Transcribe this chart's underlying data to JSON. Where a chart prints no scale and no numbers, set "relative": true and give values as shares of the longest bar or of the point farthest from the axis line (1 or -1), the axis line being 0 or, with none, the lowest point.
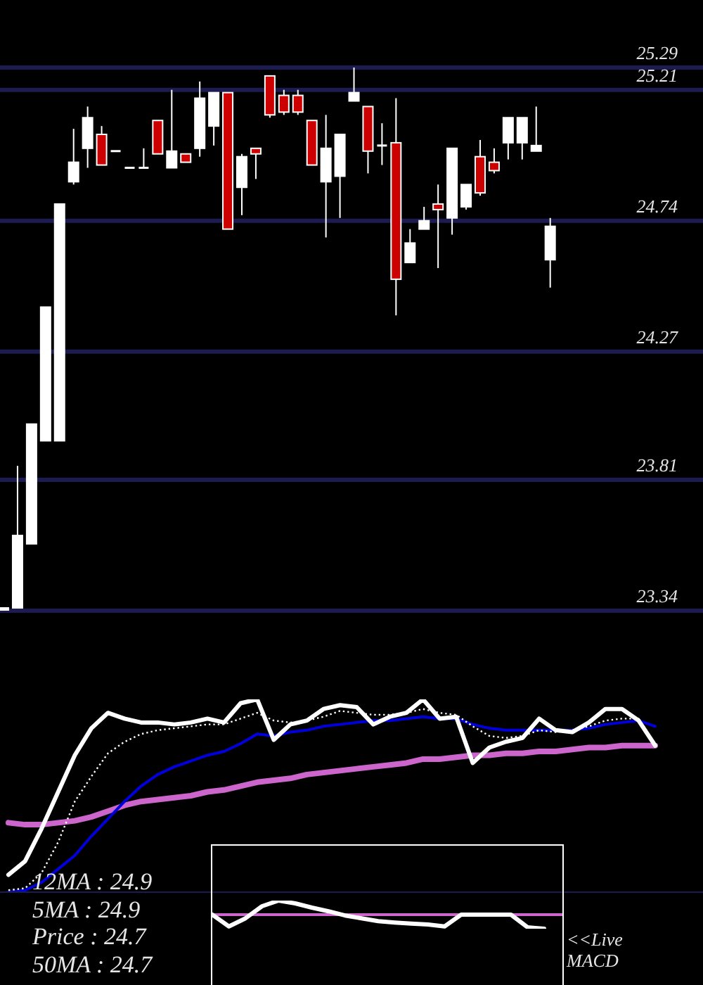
{
  "chart_data": [
    {
      "type": "candlestick",
      "categories": [
        null,
        null,
        null,
        null,
        null,
        null,
        null,
        null,
        null,
        null,
        null,
        null,
        null,
        null,
        null,
        null,
        null,
        null,
        null,
        null,
        null,
        null,
        null,
        null,
        null,
        null,
        null,
        null,
        null,
        null,
        null,
        null,
        null,
        null,
        null,
        null,
        null,
        null,
        null,
        null
      ],
      "ohlc": [
        [
          23.34,
          23.35,
          23.34,
          23.35
        ],
        [
          23.35,
          23.86,
          23.35,
          23.61
        ],
        [
          23.58,
          24.01,
          23.58,
          24.01
        ],
        [
          23.95,
          24.43,
          23.95,
          24.43
        ],
        [
          23.95,
          24.8,
          23.95,
          24.8
        ],
        [
          24.88,
          25.07,
          24.87,
          24.95
        ],
        [
          25.0,
          25.15,
          24.93,
          25.11
        ],
        [
          25.05,
          25.08,
          24.94,
          24.94
        ],
        [
          24.99,
          24.99,
          24.99,
          24.99
        ],
        [
          24.93,
          24.93,
          24.93,
          24.93
        ],
        [
          24.93,
          25.0,
          24.93,
          24.93
        ],
        [
          25.1,
          25.1,
          24.98,
          24.98
        ],
        [
          24.93,
          25.21,
          24.93,
          24.99
        ],
        [
          24.98,
          24.98,
          24.95,
          24.95
        ],
        [
          25.0,
          25.24,
          24.97,
          25.18
        ],
        [
          25.08,
          25.2,
          25.01,
          25.2
        ],
        [
          25.2,
          25.2,
          24.71,
          24.71
        ],
        [
          24.86,
          24.98,
          24.76,
          24.97
        ],
        [
          25.0,
          25.0,
          24.89,
          24.98
        ],
        [
          25.26,
          25.26,
          25.11,
          25.12
        ],
        [
          25.19,
          25.21,
          25.12,
          25.13
        ],
        [
          25.19,
          25.21,
          25.12,
          25.13
        ],
        [
          25.1,
          25.1,
          24.94,
          24.94
        ],
        [
          24.88,
          25.12,
          24.68,
          25.0
        ],
        [
          24.9,
          25.05,
          24.75,
          25.05
        ],
        [
          25.17,
          25.29,
          25.17,
          25.2
        ],
        [
          25.15,
          25.15,
          24.91,
          24.99
        ],
        [
          25.01,
          25.09,
          24.94,
          25.01
        ],
        [
          25.02,
          25.18,
          24.4,
          24.53
        ],
        [
          24.59,
          24.71,
          24.59,
          24.66
        ],
        [
          24.71,
          24.79,
          24.71,
          24.74
        ],
        [
          24.8,
          24.87,
          24.57,
          24.78
        ],
        [
          24.75,
          25.0,
          24.69,
          25.0
        ],
        [
          24.79,
          24.87,
          24.78,
          24.87
        ],
        [
          24.97,
          25.03,
          24.83,
          24.84
        ],
        [
          24.95,
          25.0,
          24.91,
          24.92
        ],
        [
          25.02,
          25.11,
          24.96,
          25.11
        ],
        [
          25.02,
          25.11,
          24.96,
          25.11
        ],
        [
          24.99,
          25.15,
          24.99,
          25.01
        ],
        [
          24.6,
          24.75,
          24.5,
          24.72
        ]
      ],
      "colors": [
        "#ffffff",
        "#ffffff",
        "#ffffff",
        "#ffffff",
        "#ffffff",
        "#ffffff",
        "#ffffff",
        "#cc0000",
        "#ffffff",
        "#ffffff",
        "#ffffff",
        "#cc0000",
        "#ffffff",
        "#cc0000",
        "#ffffff",
        "#ffffff",
        "#cc0000",
        "#ffffff",
        "#cc0000",
        "#cc0000",
        "#cc0000",
        "#cc0000",
        "#cc0000",
        "#ffffff",
        "#ffffff",
        "#ffffff",
        "#cc0000",
        "#ffffff",
        "#cc0000",
        "#ffffff",
        "#ffffff",
        "#cc0000",
        "#ffffff",
        "#ffffff",
        "#cc0000",
        "#cc0000",
        "#ffffff",
        "#ffffff",
        "#ffffff",
        "#ffffff"
      ],
      "ylim": [
        23.34,
        25.29
      ],
      "yticks": [
        23.34,
        23.81,
        24.27,
        24.74,
        25.21,
        25.29
      ],
      "grid": "y",
      "tick_labels": "y"
    },
    {
      "type": "line",
      "relative": true,
      "tick_labels": false,
      "categories": [
        null,
        null,
        null,
        null,
        null,
        null,
        null,
        null,
        null,
        null,
        null,
        null,
        null,
        null,
        null,
        null,
        null,
        null,
        null,
        null,
        null,
        null,
        null,
        null,
        null,
        null,
        null,
        null,
        null,
        null,
        null,
        null,
        null,
        null,
        null,
        null,
        null,
        null,
        null,
        null
      ],
      "series": [
        {
          "color": "#cc66cc",
          "values": [
            0.36,
            0.35,
            0.35,
            0.36,
            0.37,
            0.39,
            0.42,
            0.45,
            0.47,
            0.48,
            0.49,
            0.5,
            0.52,
            0.53,
            0.55,
            0.57,
            0.58,
            0.59,
            0.61,
            0.62,
            0.63,
            0.64,
            0.65,
            0.66,
            0.67,
            0.69,
            0.69,
            0.7,
            0.71,
            0.71,
            0.72,
            0.72,
            0.73,
            0.73,
            0.74,
            0.75,
            0.75,
            0.76,
            0.76,
            0.76
          ]
        },
        {
          "color": "#0000dd",
          "values": [
            0,
            0.01,
            0.05,
            0.12,
            0.19,
            0.29,
            0.38,
            0.47,
            0.55,
            0.61,
            0.65,
            0.68,
            0.71,
            0.73,
            0.77,
            0.82,
            0.81,
            0.83,
            0.84,
            0.86,
            0.87,
            0.88,
            0.89,
            0.89,
            0.9,
            0.91,
            0.9,
            0.9,
            0.87,
            0.85,
            0.84,
            0.84,
            0.84,
            0.84,
            0.84,
            0.85,
            0.87,
            0.88,
            0.89,
            0.86
          ]
        },
        {
          "color": "#ffffff",
          "line_style": "dotted",
          "values": [
            0.01,
            0.02,
            0.1,
            0.26,
            0.47,
            0.6,
            0.72,
            0.78,
            0.82,
            0.84,
            0.85,
            0.86,
            0.87,
            0.87,
            0.9,
            0.93,
            0.89,
            0.88,
            0.89,
            0.91,
            0.94,
            0.93,
            0.92,
            0.92,
            0.93,
            0.95,
            0.93,
            0.92,
            0.86,
            0.81,
            0.8,
            0.81,
            0.84,
            0.83,
            0.84,
            0.86,
            0.89,
            0.9,
            0.9,
            0.77
          ]
        },
        {
          "color": "#ffffff",
          "values": [
            0.09,
            0.16,
            0.33,
            0.52,
            0.71,
            0.85,
            0.93,
            0.9,
            0.88,
            0.88,
            0.87,
            0.88,
            0.9,
            0.88,
            0.98,
            1,
            0.79,
            0.87,
            0.89,
            0.95,
            0.97,
            0.96,
            0.87,
            0.91,
            0.93,
            1,
            0.9,
            0.91,
            0.67,
            0.75,
            0.78,
            0.8,
            0.9,
            0.84,
            0.83,
            0.88,
            0.95,
            0.95,
            0.89,
            0.76
          ]
        }
      ],
      "annotations": [
        "12MA : 24.9",
        "5MA : 24.9",
        "Price : 24.7",
        "50MA : 24.7"
      ]
    },
    {
      "type": "line",
      "relative": true,
      "tick_labels": false,
      "categories": [
        null,
        null,
        null,
        null,
        null,
        null,
        null,
        null,
        null,
        null,
        null,
        null,
        null,
        null,
        null,
        null,
        null,
        null,
        null,
        null,
        null
      ],
      "series": [
        {
          "color": "#ffffff",
          "values": [
            0,
            -0.84,
            -0.26,
            0.6,
            1,
            0.8,
            0.5,
            0.24,
            -0.06,
            -0.26,
            -0.46,
            -0.56,
            -0.64,
            -0.7,
            -0.84,
            0,
            0,
            0,
            0,
            -0.9,
            -1
          ]
        }
      ],
      "ref_lines": [
        {
          "axis": "y",
          "value": 0,
          "color": "#cc66cc"
        }
      ],
      "annotations": [
        "<<Live MACD"
      ]
    }
  ]
}
